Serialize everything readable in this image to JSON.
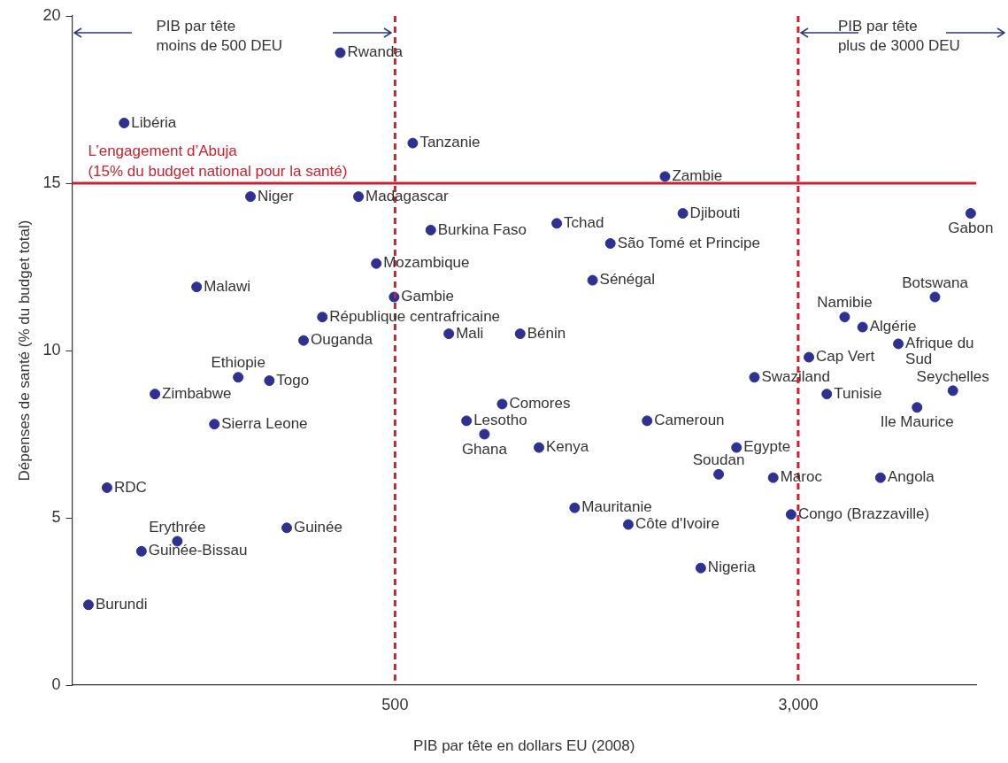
{
  "chart_data": {
    "type": "scatter",
    "xlabel": "PIB par tête en dollars EU (2008)",
    "ylabel": "Dépenses de santé (% du budget total)",
    "log": "x",
    "marker": "circle",
    "xlim": [
      119,
      6617
    ],
    "xticks": [
      500,
      {
        "value": 3000,
        "label": "3,000"
      }
    ],
    "ylim": [
      0,
      20
    ],
    "yticks": [
      0,
      5,
      10,
      15,
      20
    ],
    "x": [
      128,
      139,
      150,
      162,
      172,
      190,
      207,
      224,
      249,
      263,
      286,
      309,
      333,
      362,
      392,
      425,
      460,
      498,
      541,
      586,
      635,
      687,
      744,
      805,
      872,
      948,
      1026,
      1111,
      1203,
      1302,
      1410,
      1533,
      1660,
      1797,
      1946,
      2107,
      2281,
      2470,
      2685,
      2907,
      3147,
      3407,
      3689,
      3994,
      4325,
      4682,
      5089,
      5511,
      5967,
      6459
    ],
    "series": [
      {
        "color": "#2e3192",
        "values": [
          2.4,
          5.9,
          16.8,
          4.0,
          8.7,
          4.3,
          11.9,
          7.8,
          9.2,
          14.6,
          9.1,
          4.7,
          10.3,
          11.0,
          18.9,
          14.6,
          12.6,
          11.6,
          16.2,
          13.6,
          10.5,
          7.9,
          7.5,
          8.4,
          10.5,
          7.1,
          13.8,
          5.3,
          12.1,
          13.2,
          4.8,
          7.9,
          15.2,
          14.1,
          3.5,
          6.3,
          7.1,
          9.2,
          6.2,
          5.1,
          9.8,
          8.7,
          11.0,
          10.7,
          6.2,
          10.2,
          8.3,
          11.6,
          8.8,
          14.1
        ]
      }
    ],
    "ref_lines": [
      {
        "axis": "y",
        "value": 15,
        "label": "L’engagement d’Abuja\n(15% du budget national pour la santé)",
        "color": "#cc2131",
        "line_style": "solid"
      },
      {
        "axis": "x",
        "value": 500,
        "color": "#cc2131",
        "line_style": "dashed"
      },
      {
        "axis": "x",
        "value": 3000,
        "color": "#cc2131",
        "line_style": "dashed"
      }
    ],
    "annotations": [
      "PIB par tête\nmoins de 500 DEU",
      {
        "text": "PIB par tête\nplus de 3000 DEU",
        "x": 3000,
        "y": 19.5
      },
      {
        "text": "Burundi",
        "x": 128,
        "y": 2.4
      },
      {
        "text": "RDC",
        "x": 139,
        "y": 5.9
      },
      {
        "text": "Libéria",
        "x": 150,
        "y": 16.8
      },
      {
        "text": "Guinée-Bissau",
        "x": 162,
        "y": 4.0
      },
      {
        "text": "Zimbabwe",
        "x": 172,
        "y": 8.7
      },
      {
        "text": "Erythrée",
        "x": 190,
        "y": 4.3
      },
      {
        "text": "Malawi",
        "x": 207,
        "y": 11.9
      },
      {
        "text": "Sierra Leone",
        "x": 224,
        "y": 7.8
      },
      {
        "text": "Ethiopie",
        "x": 249,
        "y": 9.2
      },
      {
        "text": "Niger",
        "x": 263,
        "y": 14.6
      },
      {
        "text": "Togo",
        "x": 286,
        "y": 9.1
      },
      {
        "text": "Guinée",
        "x": 309,
        "y": 4.7
      },
      {
        "text": "Ouganda",
        "x": 333,
        "y": 10.3
      },
      {
        "text": "République centrafricaine",
        "x": 362,
        "y": 11.0
      },
      {
        "text": "Rwanda",
        "x": 392,
        "y": 18.9
      },
      {
        "text": "Madagascar",
        "x": 425,
        "y": 14.6
      },
      {
        "text": "Mozambique",
        "x": 460,
        "y": 12.6
      },
      {
        "text": "Gambie",
        "x": 498,
        "y": 11.6
      },
      {
        "text": "Tanzanie",
        "x": 541,
        "y": 16.2
      },
      {
        "text": "Burkina Faso",
        "x": 586,
        "y": 13.6
      },
      {
        "text": "Mali",
        "x": 635,
        "y": 10.5
      },
      {
        "text": "Lesotho",
        "x": 687,
        "y": 7.9
      },
      {
        "text": "Ghana",
        "x": 744,
        "y": 7.5
      },
      {
        "text": "Comores",
        "x": 805,
        "y": 8.4
      },
      {
        "text": "Bénin",
        "x": 872,
        "y": 10.5
      },
      {
        "text": "Kenya",
        "x": 948,
        "y": 7.1
      },
      {
        "text": "Tchad",
        "x": 1026,
        "y": 13.8
      },
      {
        "text": "Mauritanie",
        "x": 1111,
        "y": 5.3
      },
      {
        "text": "Sénégal",
        "x": 1203,
        "y": 12.1
      },
      {
        "text": "São Tomé et Principe",
        "x": 1302,
        "y": 13.2
      },
      {
        "text": "Côte d'Ivoire",
        "x": 1410,
        "y": 4.8
      },
      {
        "text": "Cameroun",
        "x": 1533,
        "y": 7.9
      },
      {
        "text": "Zambie",
        "x": 1660,
        "y": 15.2
      },
      {
        "text": "Djibouti",
        "x": 1797,
        "y": 14.1
      },
      {
        "text": "Nigeria",
        "x": 1946,
        "y": 3.5
      },
      {
        "text": "Soudan",
        "x": 2107,
        "y": 6.3
      },
      {
        "text": "Egypte",
        "x": 2281,
        "y": 7.1
      },
      {
        "text": "Swaziland",
        "x": 2470,
        "y": 9.2
      },
      {
        "text": "Maroc",
        "x": 2685,
        "y": 6.2
      },
      {
        "text": "Congo (Brazzaville)",
        "x": 2907,
        "y": 5.1
      },
      {
        "text": "Cap Vert",
        "x": 3147,
        "y": 9.8
      },
      {
        "text": "Tunisie",
        "x": 3407,
        "y": 8.7
      },
      {
        "text": "Namibie",
        "x": 3689,
        "y": 11.0
      },
      {
        "text": "Algérie",
        "x": 3994,
        "y": 10.7
      },
      {
        "text": "Angola",
        "x": 4325,
        "y": 6.2
      },
      {
        "text": "Afrique du Sud",
        "x": 4682,
        "y": 10.2
      },
      {
        "text": "Ile Maurice",
        "x": 5089,
        "y": 8.3
      },
      {
        "text": "Botswana",
        "x": 5511,
        "y": 11.6
      },
      {
        "text": "Seychelles",
        "x": 5967,
        "y": 8.8
      },
      {
        "text": "Gabon",
        "x": 6459,
        "y": 14.1
      }
    ]
  }
}
